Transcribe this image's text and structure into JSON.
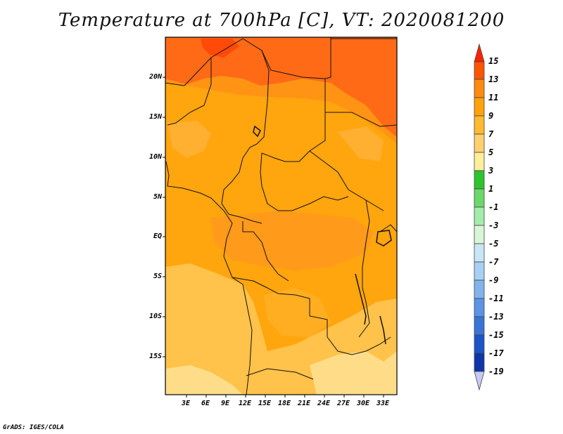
{
  "title": "Temperature at 700hPa [C], VT: 2020081200",
  "footer": "GrADS: IGES/COLA",
  "lat_labels": [
    "20N",
    "15N",
    "10N",
    "5N",
    "EQ",
    "5S",
    "10S",
    "15S"
  ],
  "lon_labels": [
    "3E",
    "6E",
    "9E",
    "12E",
    "15E",
    "18E",
    "21E",
    "24E",
    "27E",
    "30E",
    "33E"
  ],
  "colorbar": {
    "labels": [
      "15",
      "13",
      "11",
      "9",
      "7",
      "5",
      "3",
      "1",
      "-1",
      "-3",
      "-5",
      "-7",
      "-9",
      "-11",
      "-13",
      "-15",
      "-17",
      "-19"
    ],
    "colors": [
      "#ff2200",
      "#ff5500",
      "#ff8a10",
      "#ffa30a",
      "#ffba30",
      "#ffd070",
      "#ffee9a",
      "#2ec430",
      "#6ad86a",
      "#a4ecaa",
      "#d8f6d6",
      "#c8e6f6",
      "#a8d0f4",
      "#82b4ec",
      "#5b94e2",
      "#3a74d8",
      "#1c54c8",
      "#0c36aa",
      "#081878",
      "#c8c8f8"
    ]
  },
  "legend_colors": {
    "c13": "#ff5a12",
    "c11": "#ff9a14",
    "c9": "#ffae22",
    "c7": "#ffc24a",
    "c5": "#ffdf88"
  }
}
